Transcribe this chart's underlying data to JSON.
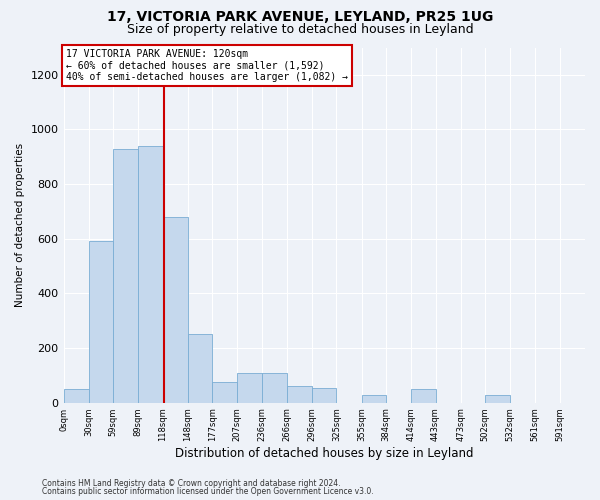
{
  "title1": "17, VICTORIA PARK AVENUE, LEYLAND, PR25 1UG",
  "title2": "Size of property relative to detached houses in Leyland",
  "xlabel": "Distribution of detached houses by size in Leyland",
  "ylabel": "Number of detached properties",
  "bins": [
    0,
    30,
    59,
    89,
    118,
    148,
    177,
    207,
    236,
    266,
    296,
    325,
    355,
    384,
    414,
    443,
    473,
    502,
    532,
    561,
    591
  ],
  "values": [
    50,
    590,
    930,
    940,
    680,
    250,
    75,
    110,
    110,
    60,
    55,
    0,
    30,
    0,
    50,
    0,
    0,
    30,
    0,
    0
  ],
  "bar_color": "#c5d8ed",
  "bar_edge_color": "#7aadd4",
  "redline_x": 120,
  "annotation_title": "17 VICTORIA PARK AVENUE: 120sqm",
  "annotation_line1": "← 60% of detached houses are smaller (1,592)",
  "annotation_line2": "40% of semi-detached houses are larger (1,082) →",
  "annotation_box_color": "#ffffff",
  "annotation_box_edge": "#cc0000",
  "redline_color": "#cc0000",
  "footer1": "Contains HM Land Registry data © Crown copyright and database right 2024.",
  "footer2": "Contains public sector information licensed under the Open Government Licence v3.0.",
  "background_color": "#eef2f8",
  "ylim": [
    0,
    1300
  ],
  "title_fontsize": 10,
  "subtitle_fontsize": 9
}
